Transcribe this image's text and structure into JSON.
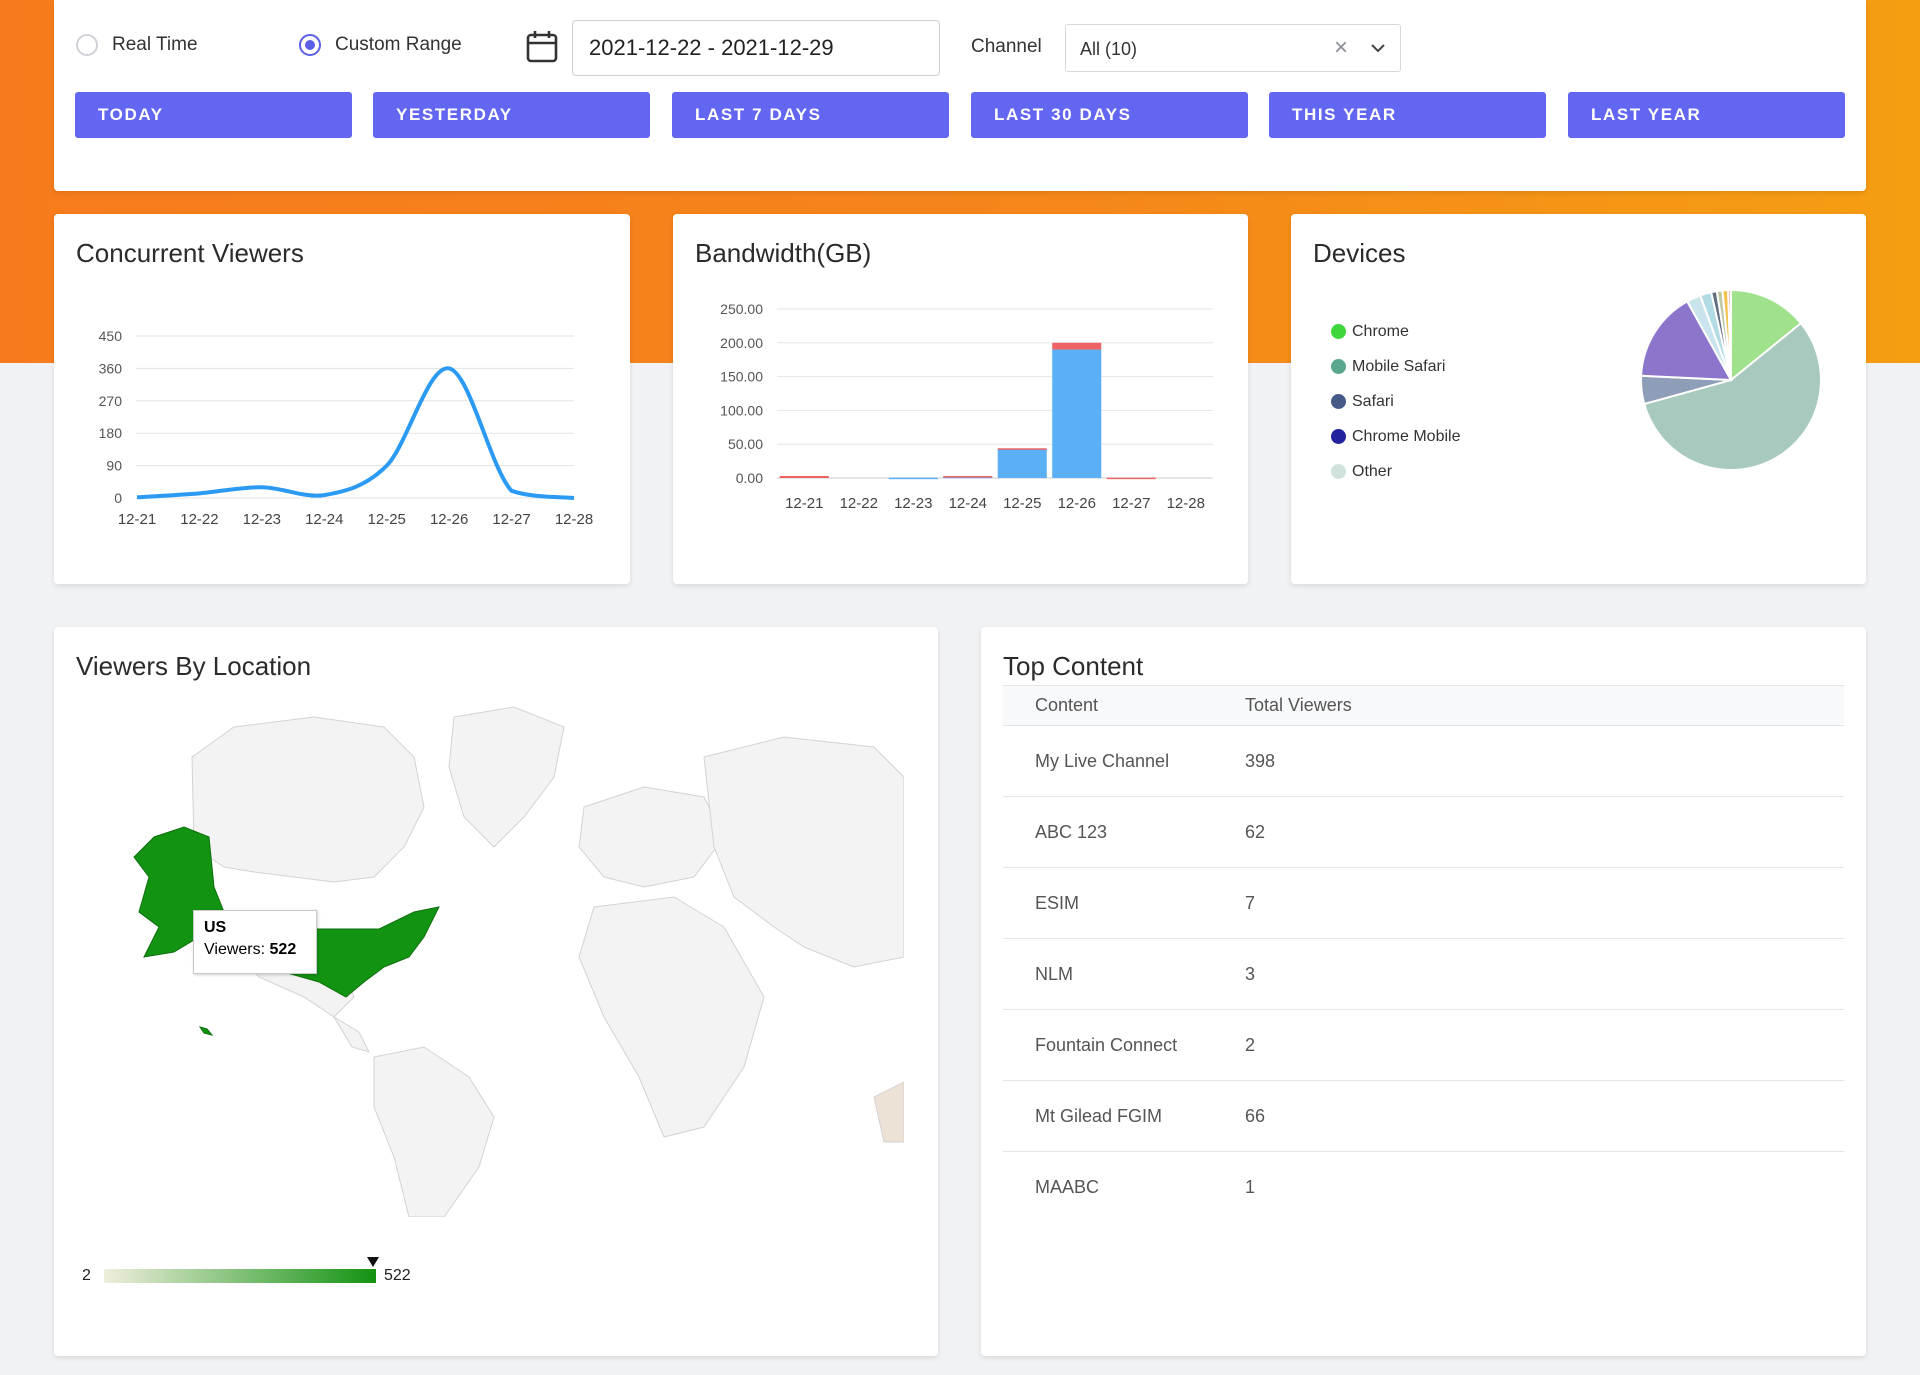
{
  "filters": {
    "realtime_label": "Real Time",
    "custom_label": "Custom Range",
    "date_range": "2021-12-22 - 2021-12-29",
    "channel_label": "Channel",
    "channel_value": "All (10)",
    "clear_glyph": "×",
    "ranges": [
      "TODAY",
      "YESTERDAY",
      "LAST 7 DAYS",
      "LAST 30 DAYS",
      "THIS YEAR",
      "LAST YEAR"
    ]
  },
  "viewers_card": {
    "title": "Concurrent Viewers"
  },
  "bandwidth_card": {
    "title": "Bandwidth(GB)"
  },
  "devices_card": {
    "title": "Devices"
  },
  "location_card": {
    "title": "Viewers By Location"
  },
  "map": {
    "tooltip_country": "US",
    "tooltip_label": "Viewers:",
    "tooltip_value": "522",
    "scale_min": "2",
    "scale_max": "522",
    "highlight_color": "#139312"
  },
  "content_card": {
    "title": "Top Content",
    "columns": [
      "Content",
      "Total Viewers"
    ],
    "rows": [
      {
        "content": "My Live Channel",
        "viewers": "398"
      },
      {
        "content": "ABC 123",
        "viewers": "62"
      },
      {
        "content": "ESIM",
        "viewers": "7"
      },
      {
        "content": "NLM",
        "viewers": "3"
      },
      {
        "content": "Fountain Connect",
        "viewers": "2"
      },
      {
        "content": "Mt Gilead FGIM",
        "viewers": "66"
      },
      {
        "content": "MAABC",
        "viewers": "1"
      }
    ]
  },
  "colors": {
    "accent": "#6366f1",
    "orange": "#f77b1c",
    "line": "#2b9af3",
    "bar_blue": "#5aaff5",
    "bar_red": "#ee6363"
  },
  "icons": [
    "calendar-icon",
    "close-icon",
    "chevron-down-icon"
  ],
  "chart_data": [
    {
      "type": "line",
      "x": [
        "12-21",
        "12-22",
        "12-23",
        "12-24",
        "12-25",
        "12-26",
        "12-27",
        "12-28"
      ],
      "values": [
        2,
        13,
        30,
        8,
        90,
        360,
        20,
        0
      ],
      "ylim": [
        0,
        450
      ],
      "yticks": [
        0,
        90,
        180,
        270,
        360,
        450
      ],
      "grid": true
    },
    {
      "type": "bar",
      "categories": [
        "12-21",
        "12-22",
        "12-23",
        "12-24",
        "12-25",
        "12-26",
        "12-27",
        "12-28"
      ],
      "series": [
        {
          "values": [
            0,
            0,
            0.5,
            2,
            43,
            190,
            0,
            0
          ],
          "color": "#5aaff5"
        },
        {
          "values": [
            3,
            0,
            0,
            1,
            1,
            10,
            0.5,
            0
          ],
          "color": "#ee6363"
        }
      ],
      "stacked": true,
      "ylim": [
        0,
        250
      ],
      "yticks": [
        "0.00",
        "50.00",
        "100.00",
        "150.00",
        "200.00",
        "250.00"
      ],
      "grid": true
    },
    {
      "type": "pie",
      "legend": [
        "Chrome",
        "Mobile Safari",
        "Safari",
        "Chrome Mobile",
        "Other"
      ],
      "legend_colors": [
        "#3ed63b",
        "#5aa78f",
        "#465a8a",
        "#23239e",
        "#cfe3dc"
      ],
      "legend_position": "left",
      "slices": [
        {
          "value": 14,
          "color": "#9fe28b"
        },
        {
          "value": 56,
          "color": "#a8c9bd"
        },
        {
          "value": 5,
          "color": "#8e9eb8"
        },
        {
          "value": 16,
          "color": "#8c76cc"
        },
        {
          "value": 2.5,
          "color": "#c9e4ec"
        },
        {
          "value": 2,
          "color": "#b2dbe6"
        },
        {
          "value": 1,
          "color": "#607080"
        },
        {
          "value": 1,
          "color": "#bfc9a6"
        },
        {
          "value": 1,
          "color": "#f2c34f"
        },
        {
          "value": 0.5,
          "color": "#e69a9a"
        }
      ]
    }
  ]
}
